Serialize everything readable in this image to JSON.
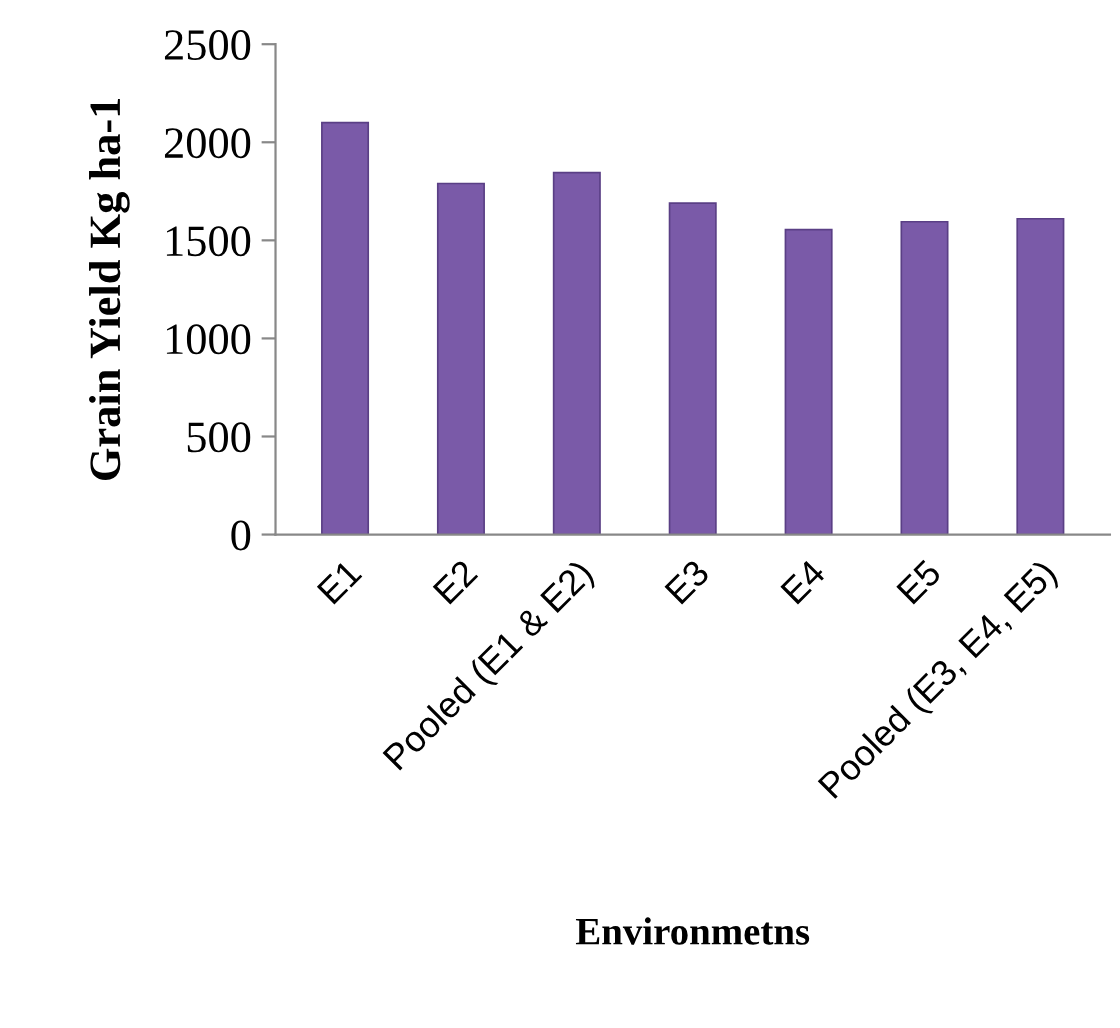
{
  "chart_data": {
    "type": "bar",
    "xlabel": "Environmetns",
    "ylabel": "Grain Yield Kg ha-1",
    "categories": [
      "E1",
      "E2",
      "Pooled (E1 & E2)",
      "E3",
      "E4",
      "E5",
      "Pooled (E3, E4, E5)"
    ],
    "series": [
      {
        "color": "#7a5aa8",
        "values": [
          2100,
          1790,
          1845,
          1690,
          1555,
          1595,
          1610
        ]
      }
    ],
    "ylim": [
      0,
      2500
    ],
    "yticks": [
      0,
      500,
      1000,
      1500,
      2000,
      2500
    ],
    "grid": false,
    "legend": false
  }
}
